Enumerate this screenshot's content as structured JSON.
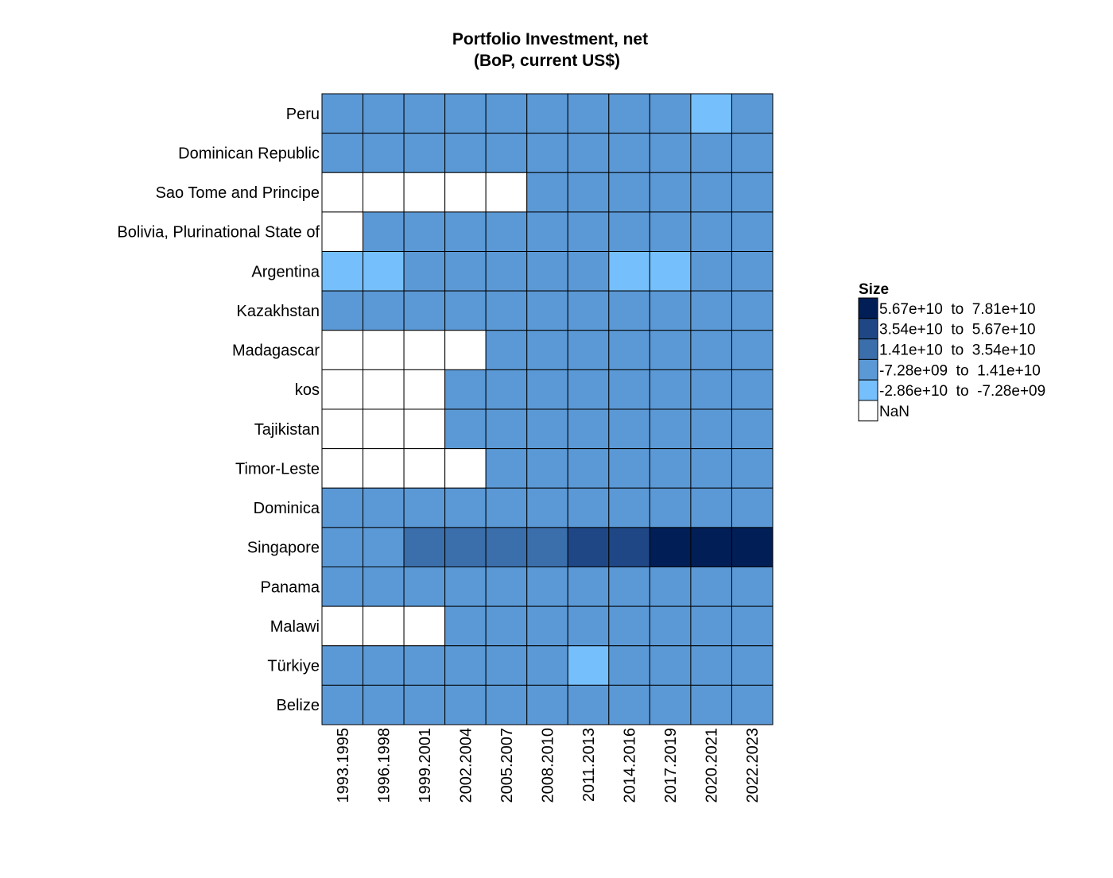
{
  "chart_data": {
    "type": "heatmap",
    "title": "Portfolio Investment, net",
    "subtitle": "(BoP, current US$)",
    "x_categories": [
      "1993.1995",
      "1996.1998",
      "1999.2001",
      "2002.2004",
      "2005.2007",
      "2008.2010",
      "2011.2013",
      "2014.2016",
      "2017.2019",
      "2020.2021",
      "2022.2023"
    ],
    "y_categories": [
      "Peru",
      "Dominican Republic",
      "Sao Tome and Principe",
      "Bolivia, Plurinational State of",
      "Argentina",
      "Kazakhstan",
      "Madagascar",
      "kos",
      "Tajikistan",
      "Timor-Leste",
      "Dominica",
      "Singapore",
      "Panama",
      "Malawi",
      "Türkiye",
      "Belize"
    ],
    "cells": [
      [
        3,
        3,
        3,
        3,
        3,
        3,
        3,
        3,
        3,
        4,
        3
      ],
      [
        3,
        3,
        3,
        3,
        3,
        3,
        3,
        3,
        3,
        3,
        3
      ],
      [
        null,
        null,
        null,
        null,
        null,
        3,
        3,
        3,
        3,
        3,
        3
      ],
      [
        null,
        3,
        3,
        3,
        3,
        3,
        3,
        3,
        3,
        3,
        3
      ],
      [
        4,
        4,
        3,
        3,
        3,
        3,
        3,
        4,
        4,
        3,
        3
      ],
      [
        3,
        3,
        3,
        3,
        3,
        3,
        3,
        3,
        3,
        3,
        3
      ],
      [
        null,
        null,
        null,
        null,
        3,
        3,
        3,
        3,
        3,
        3,
        3
      ],
      [
        null,
        null,
        null,
        3,
        3,
        3,
        3,
        3,
        3,
        3,
        3
      ],
      [
        null,
        null,
        null,
        3,
        3,
        3,
        3,
        3,
        3,
        3,
        3
      ],
      [
        null,
        null,
        null,
        null,
        3,
        3,
        3,
        3,
        3,
        3,
        3
      ],
      [
        3,
        3,
        3,
        3,
        3,
        3,
        3,
        3,
        3,
        3,
        3
      ],
      [
        3,
        3,
        2,
        2,
        2,
        2,
        1,
        1,
        0,
        0,
        0
      ],
      [
        3,
        3,
        3,
        3,
        3,
        3,
        3,
        3,
        3,
        3,
        3
      ],
      [
        null,
        null,
        null,
        3,
        3,
        3,
        3,
        3,
        3,
        3,
        3
      ],
      [
        3,
        3,
        3,
        3,
        3,
        3,
        4,
        3,
        3,
        3,
        3
      ],
      [
        3,
        3,
        3,
        3,
        3,
        3,
        3,
        3,
        3,
        3,
        3
      ]
    ],
    "legend": {
      "title": "Size",
      "placement": "right",
      "bins": [
        {
          "label": "5.67e+10  to  7.81e+10",
          "color": "#021e56"
        },
        {
          "label": "3.54e+10  to  5.67e+10",
          "color": "#1f4785"
        },
        {
          "label": "1.41e+10  to  3.54e+10",
          "color": "#3b6fab"
        },
        {
          "label": "-7.28e+09  to  1.41e+10",
          "color": "#5b99d6"
        },
        {
          "label": "-2.86e+10  to  -7.28e+09",
          "color": "#75bffc"
        }
      ],
      "nan": {
        "label": "NaN",
        "color": "#ffffff"
      }
    },
    "grid": true
  }
}
